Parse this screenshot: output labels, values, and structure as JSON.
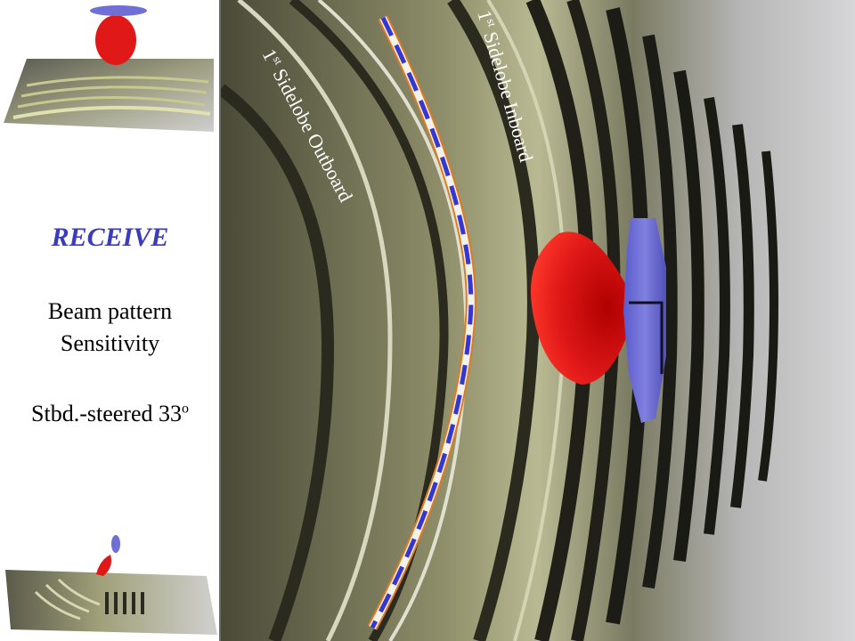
{
  "panel": {
    "title": "RECEIVE",
    "line1": "Beam pattern",
    "line2": "Sensitivity",
    "steer_prefix": "Stbd.-steered 33",
    "steer_suffix": "o"
  },
  "labels": {
    "outboard_num": "1",
    "outboard_sup": "st",
    "outboard_text": " Sidelobe Outboard",
    "inboard_num": "1",
    "inboard_sup": "st",
    "inboard_text": " Sidelobe Inboard"
  },
  "colors": {
    "title": "#3b3bbf",
    "beam": "#e01818",
    "transducer": "#6f6fd6",
    "track_outline": "#e07a20",
    "track_center": "#3636d0"
  }
}
